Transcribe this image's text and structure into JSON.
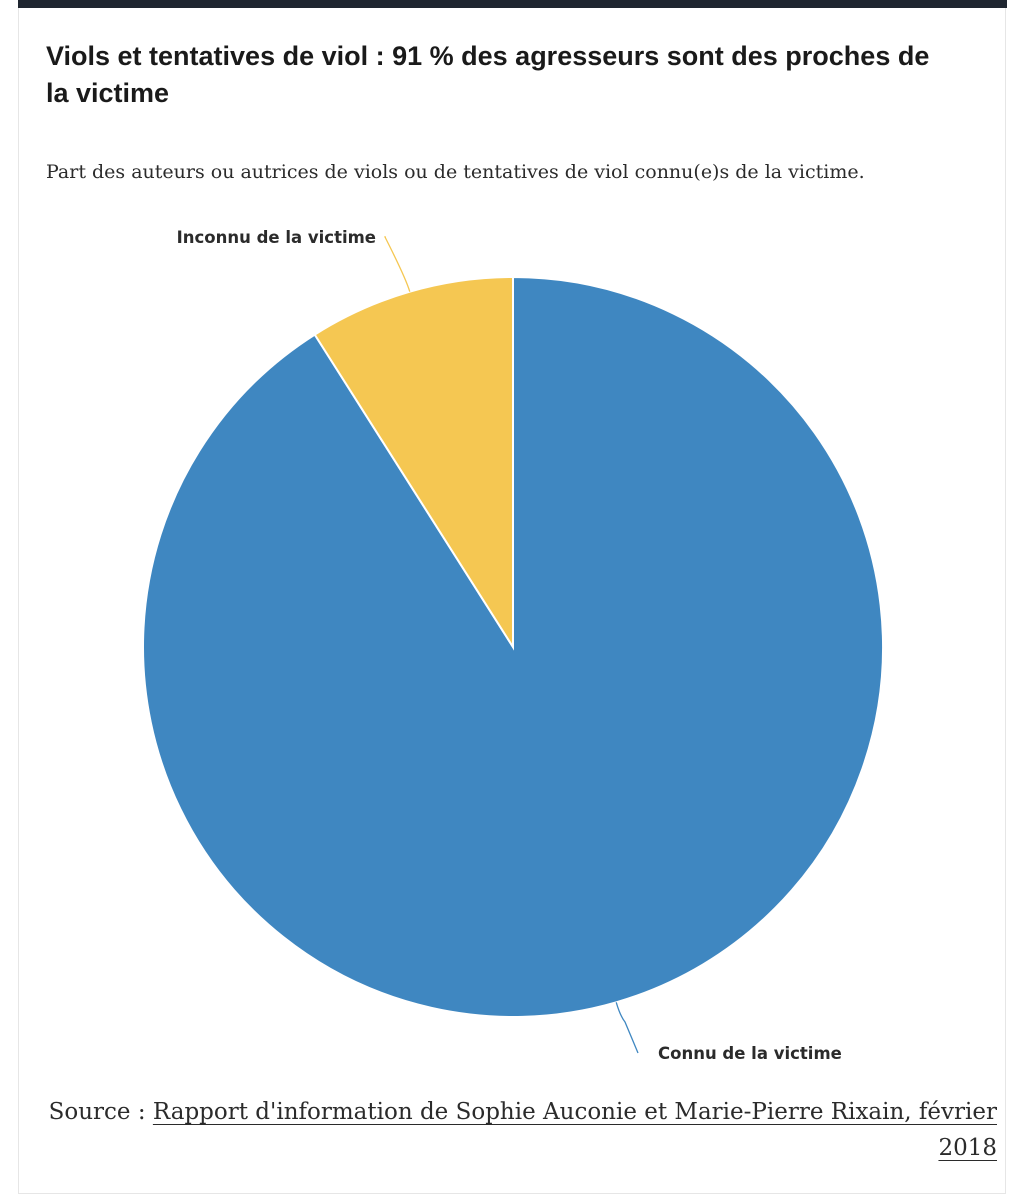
{
  "title": "Viols et tentatives de viol : 91 % des agresseurs sont des proches de la victime",
  "subtitle": "Part des auteurs ou autrices de viols ou de tentatives de viol connu(e)s de la victime.",
  "source": {
    "prefix": "Source : ",
    "link_text": "Rapport d'information de Sophie Auconie et Marie-Pierre Rixain, février 2018"
  },
  "colors": {
    "connu": "#3f87c1",
    "inconnu": "#f5c752"
  },
  "chart_data": {
    "type": "pie",
    "title": "Viols et tentatives de viol : 91 % des agresseurs sont des proches de la victime",
    "subtitle": "Part des auteurs ou autrices de viols ou de tentatives de viol connu(e)s de la victime.",
    "slices": [
      {
        "label": "Connu de la victime",
        "value": 91
      },
      {
        "label": "Inconnu de la victime",
        "value": 9
      }
    ]
  }
}
